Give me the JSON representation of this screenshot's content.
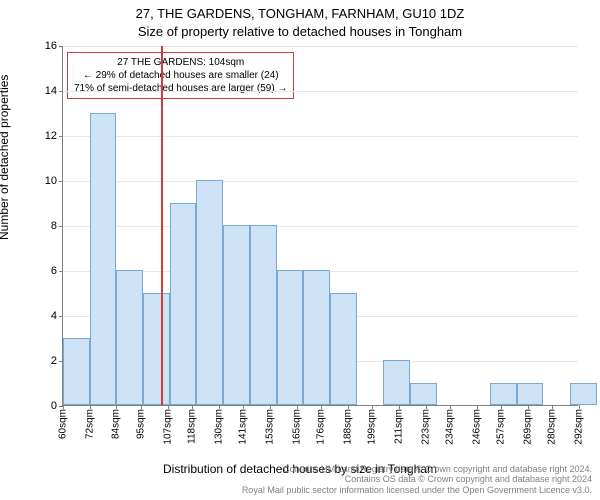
{
  "chart": {
    "type": "histogram",
    "title_line1": "27, THE GARDENS, TONGHAM, FARNHAM, GU10 1DZ",
    "title_line2": "Size of property relative to detached houses in Tongham",
    "ylabel": "Number of detached properties",
    "xlabel": "Distribution of detached houses by size in Tongham",
    "footer_line1": "Contains HM Land Registry data © Crown copyright and database right 2024.",
    "footer_line2": "Contains OS data © Crown copyright and database right 2024",
    "footer_line3": "Royal Mail public sector information licensed under the Open Government Licence v3.0.",
    "plot": {
      "bg": "#ffffff",
      "grid_color": "#e8e8e8",
      "axis_color": "#808080",
      "bar_fill": "#cde2f4",
      "bar_stroke": "#7aa8d4",
      "marker_color": "#d43b3b",
      "ylim": [
        0,
        16
      ],
      "ytick_step": 2,
      "bar_start": 60,
      "bar_width_sqm": 12,
      "marker_value_sqm": 104,
      "xtick_values": [
        60,
        72,
        84,
        95,
        107,
        118,
        130,
        141,
        153,
        165,
        176,
        188,
        199,
        211,
        223,
        234,
        246,
        257,
        269,
        280,
        292
      ],
      "bars": [
        3,
        13,
        6,
        5,
        9,
        10,
        8,
        8,
        6,
        6,
        5,
        0,
        2,
        1,
        0,
        0,
        1,
        1,
        0,
        1
      ],
      "annotation": {
        "line1": "27 THE GARDENS: 104sqm",
        "line2": "← 29% of detached houses are smaller (24)",
        "line3": "71% of semi-detached houses are larger (59) →"
      }
    }
  }
}
